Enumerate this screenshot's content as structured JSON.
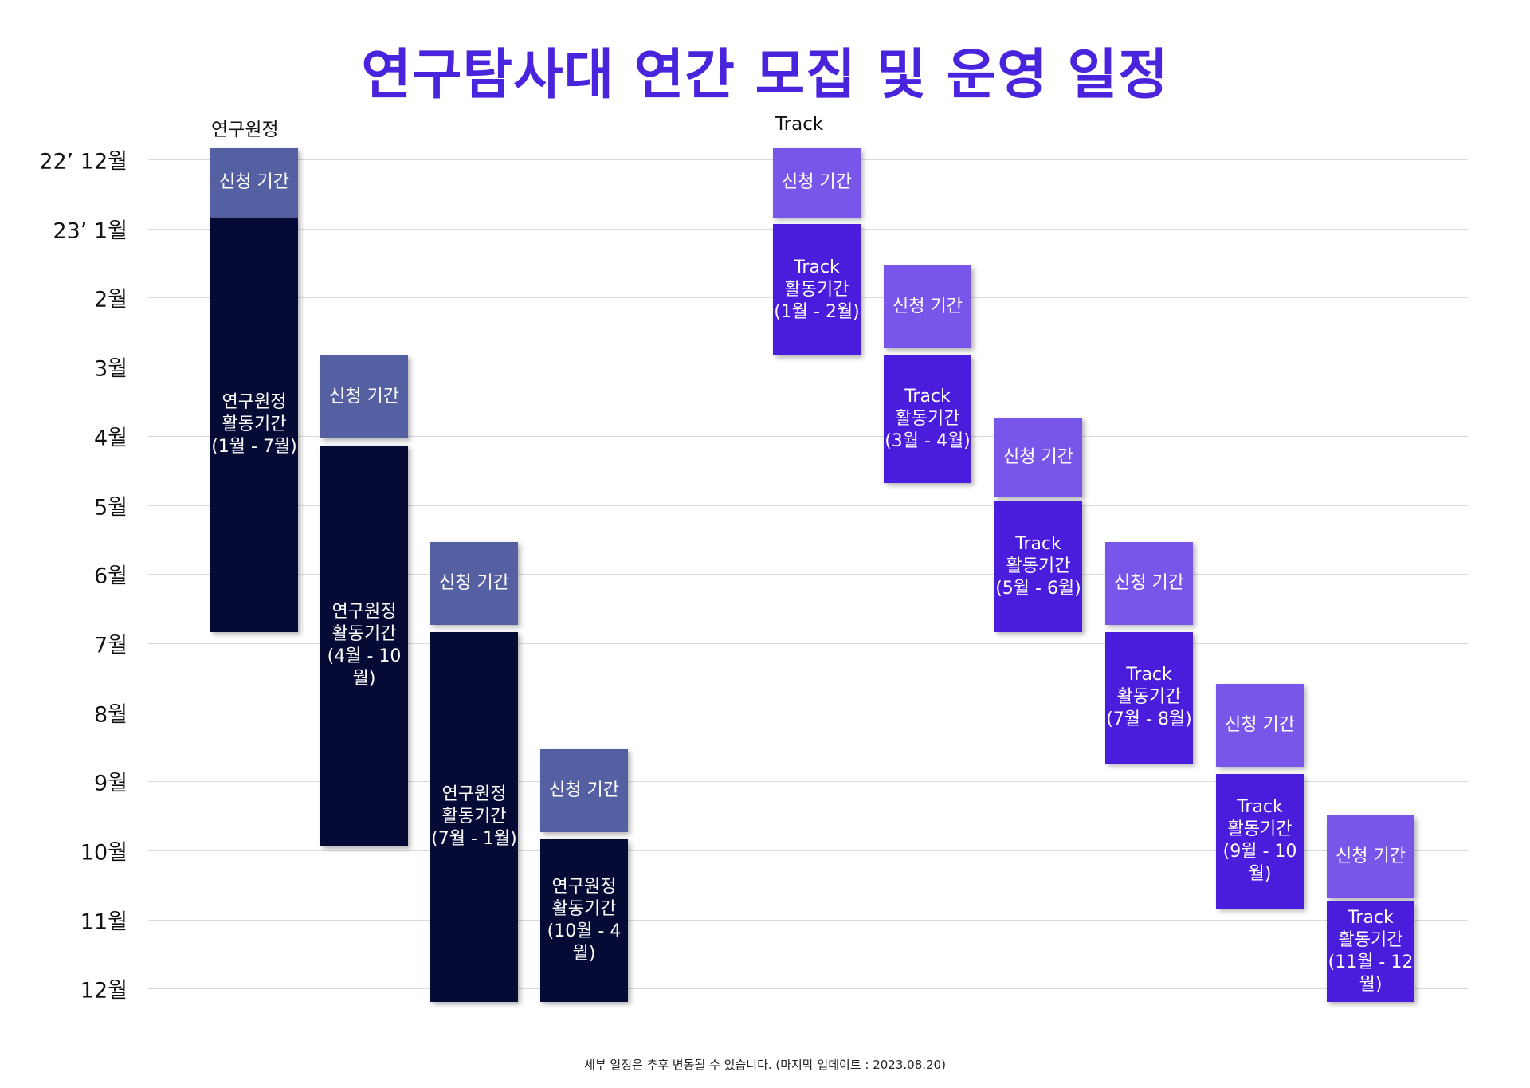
{
  "chart_data": {
    "type": "gantt",
    "title": "연구탐사대 연간 모집 및 운영 일정",
    "footnote": "세부 일정은 추후 변동될 수 있습니다. (마지막 업데이트 : 2023.08.20)",
    "y_axis_labels": [
      "22’ 12월",
      "23’ 1월",
      "2월",
      "3월",
      "4월",
      "5월",
      "6월",
      "7월",
      "8월",
      "9월",
      "10월",
      "11월",
      "12월"
    ],
    "groups": [
      {
        "label": "연구원정",
        "color": "#1a1d52"
      },
      {
        "label": "Track",
        "color": "#5a2be6"
      }
    ],
    "colors": {
      "research_apply": "#5560a3",
      "research_activity": "#060b36",
      "track_apply": "#7856ea",
      "track_activity": "#4a1cdc"
    },
    "bars": [
      {
        "group": "연구원정",
        "kind": "research_apply",
        "label": "신청 기간",
        "start": 0,
        "end": 1
      },
      {
        "group": "연구원정",
        "kind": "research_activity",
        "label": "연구원정\n활동기간\n(1월 - 7월)",
        "start": 1,
        "end": 7
      },
      {
        "group": "연구원정",
        "kind": "research_apply",
        "label": "신청 기간",
        "start": 3,
        "end": 4.2
      },
      {
        "group": "연구원정",
        "kind": "research_activity",
        "label": "연구원정\n활동기간\n(4월 - 10월)",
        "start": 4.3,
        "end": 10.1
      },
      {
        "group": "연구원정",
        "kind": "research_apply",
        "label": "신청 기간",
        "start": 5.7,
        "end": 6.9
      },
      {
        "group": "연구원정",
        "kind": "research_activity",
        "label": "연구원정\n활동기간\n(7월 - 1월)",
        "start": 7,
        "end": 12.35
      },
      {
        "group": "연구원정",
        "kind": "research_apply",
        "label": "신청 기간",
        "start": 8.7,
        "end": 9.9
      },
      {
        "group": "연구원정",
        "kind": "research_activity",
        "label": "연구원정\n활동기간\n(10월 - 4월)",
        "start": 10,
        "end": 12.35
      },
      {
        "group": "Track",
        "kind": "track_apply",
        "label": "신청 기간",
        "start": 0,
        "end": 1
      },
      {
        "group": "Track",
        "kind": "track_activity",
        "label": "Track\n활동기간\n(1월 - 2월)",
        "start": 1.1,
        "end": 3
      },
      {
        "group": "Track",
        "kind": "track_apply",
        "label": "신청 기간",
        "start": 1.7,
        "end": 2.9
      },
      {
        "group": "Track",
        "kind": "track_activity",
        "label": "Track\n활동기간\n(3월 - 4월)",
        "start": 3,
        "end": 4.85
      },
      {
        "group": "Track",
        "kind": "track_apply",
        "label": "신청 기간",
        "start": 3.9,
        "end": 5.05
      },
      {
        "group": "Track",
        "kind": "track_activity",
        "label": "Track\n활동기간\n(5월 - 6월)",
        "start": 5.1,
        "end": 7
      },
      {
        "group": "Track",
        "kind": "track_apply",
        "label": "신청 기간",
        "start": 5.7,
        "end": 6.9
      },
      {
        "group": "Track",
        "kind": "track_activity",
        "label": "Track\n활동기간\n(7월 - 8월)",
        "start": 7,
        "end": 8.9
      },
      {
        "group": "Track",
        "kind": "track_apply",
        "label": "신청 기간",
        "start": 7.75,
        "end": 8.95
      },
      {
        "group": "Track",
        "kind": "track_activity",
        "label": "Track\n활동기간\n(9월 - 10월)",
        "start": 9.05,
        "end": 11
      },
      {
        "group": "Track",
        "kind": "track_apply",
        "label": "신청 기간",
        "start": 9.65,
        "end": 10.85
      },
      {
        "group": "Track",
        "kind": "track_activity",
        "label": "Track\n활동기간\n(11월 - 12월)",
        "start": 10.9,
        "end": 12.35
      }
    ]
  }
}
